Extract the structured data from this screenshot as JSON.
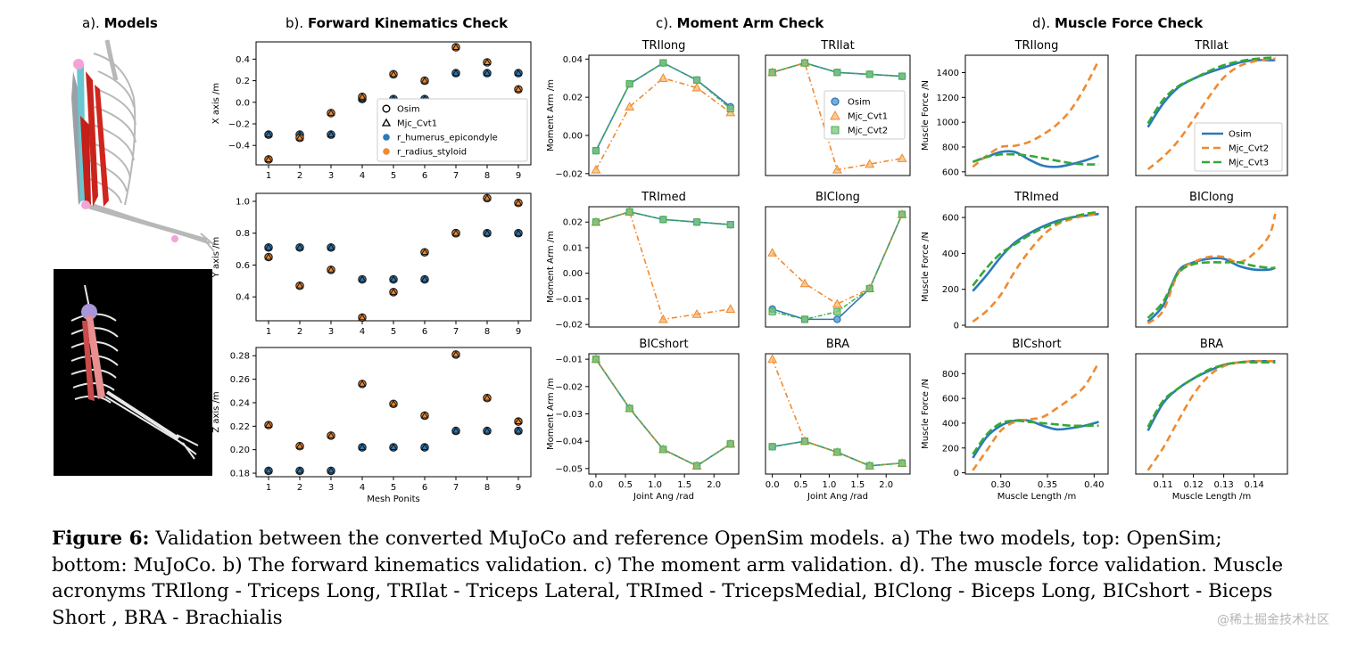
{
  "sections": {
    "a": {
      "label": "a).",
      "title": "Models"
    },
    "b": {
      "label": "b).",
      "title": "Forward Kinematics Check"
    },
    "c": {
      "label": "c).",
      "title": "Moment Arm Check"
    },
    "d": {
      "label": "d).",
      "title": "Muscle Force Check"
    }
  },
  "caption": {
    "label": "Figure 6:",
    "text": " Validation between the converted MuJoCo and reference OpenSim models. a) The two models, top: OpenSim; bottom: MuJoCo. b) The forward kinematics validation. c) The moment arm validation. d). The muscle force validation. Muscle acronyms TRIlong - Triceps Long, TRIlat - Triceps Lateral, TRImed - TricepsMedial, BIClong - Biceps Long, BICshort - Biceps Short , BRA - Brachialis"
  },
  "watermark": "@稀土掘金技术社区",
  "colors": {
    "osim": "#2a7ab8",
    "mjc": "#f08a30",
    "cvt2": "#4caf50",
    "cvt3": "#35a835"
  },
  "chart_data": [
    {
      "id": "fk_x",
      "type": "scatter",
      "ylabel": "X axis /m",
      "x": [
        1,
        2,
        3,
        4,
        5,
        6,
        7,
        8,
        9
      ],
      "xlim": [
        0.6,
        9.4
      ],
      "ylim": [
        -0.58,
        0.56
      ],
      "yticks": [
        -0.4,
        -0.2,
        0.0,
        0.2,
        0.4
      ],
      "ytick_labels": [
        "−0.4",
        "−0.2",
        "0.0",
        "0.2",
        "0.4"
      ],
      "xticks": [
        1,
        2,
        3,
        4,
        5,
        6,
        7,
        8,
        9
      ],
      "xtick_labels": [
        "1",
        "2",
        "3",
        "4",
        "5",
        "6",
        "7",
        "8",
        "9"
      ],
      "series": [
        {
          "name": "r_humerus_epicondyle",
          "values": [
            -0.3,
            -0.3,
            -0.3,
            0.03,
            0.03,
            0.03,
            0.27,
            0.27,
            0.27
          ]
        },
        {
          "name": "r_radius_styloid",
          "values": [
            -0.53,
            -0.33,
            -0.1,
            0.05,
            0.26,
            0.2,
            0.51,
            0.37,
            0.12
          ]
        }
      ],
      "legend": [
        "Osim",
        "Mjc_Cvt1",
        "r_humerus_epicondyle",
        "r_radius_styloid"
      ],
      "legend_loc": "center-right"
    },
    {
      "id": "fk_y",
      "type": "scatter",
      "ylabel": "Y axis /m",
      "x": [
        1,
        2,
        3,
        4,
        5,
        6,
        7,
        8,
        9
      ],
      "xlim": [
        0.6,
        9.4
      ],
      "ylim": [
        0.25,
        1.05
      ],
      "yticks": [
        0.4,
        0.6,
        0.8,
        1.0
      ],
      "ytick_labels": [
        "0.4",
        "0.6",
        "0.8",
        "1.0"
      ],
      "xticks": [
        1,
        2,
        3,
        4,
        5,
        6,
        7,
        8,
        9
      ],
      "xtick_labels": [
        "1",
        "2",
        "3",
        "4",
        "5",
        "6",
        "7",
        "8",
        "9"
      ],
      "series": [
        {
          "name": "r_humerus_epicondyle",
          "values": [
            0.71,
            0.71,
            0.71,
            0.51,
            0.51,
            0.51,
            0.8,
            0.8,
            0.8
          ]
        },
        {
          "name": "r_radius_styloid",
          "values": [
            0.65,
            0.47,
            0.57,
            0.27,
            0.43,
            0.68,
            0.8,
            1.02,
            0.99
          ]
        }
      ]
    },
    {
      "id": "fk_z",
      "type": "scatter",
      "ylabel": "Z axis /m",
      "xlabel": "Mesh Ponits",
      "x": [
        1,
        2,
        3,
        4,
        5,
        6,
        7,
        8,
        9
      ],
      "xlim": [
        0.6,
        9.4
      ],
      "ylim": [
        0.177,
        0.287
      ],
      "yticks": [
        0.18,
        0.2,
        0.22,
        0.24,
        0.26,
        0.28
      ],
      "ytick_labels": [
        "0.18",
        "0.20",
        "0.22",
        "0.24",
        "0.26",
        "0.28"
      ],
      "xticks": [
        1,
        2,
        3,
        4,
        5,
        6,
        7,
        8,
        9
      ],
      "xtick_labels": [
        "1",
        "2",
        "3",
        "4",
        "5",
        "6",
        "7",
        "8",
        "9"
      ],
      "series": [
        {
          "name": "r_humerus_epicondyle",
          "values": [
            0.182,
            0.182,
            0.182,
            0.202,
            0.202,
            0.202,
            0.216,
            0.216,
            0.216
          ]
        },
        {
          "name": "r_radius_styloid",
          "values": [
            0.221,
            0.203,
            0.212,
            0.256,
            0.239,
            0.229,
            0.281,
            0.244,
            0.224
          ]
        }
      ]
    },
    {
      "id": "ma_trilong",
      "type": "line",
      "title": "TRIlong",
      "ylabel": "Moment Arm /m",
      "x": [
        0.0,
        0.57,
        1.14,
        1.71,
        2.28
      ],
      "xlim": [
        -0.12,
        2.42
      ],
      "ylim": [
        -0.021,
        0.042
      ],
      "yticks": [
        -0.02,
        0.0,
        0.02,
        0.04
      ],
      "ytick_labels": [
        "−0.02",
        "0.00",
        "0.02",
        "0.04"
      ],
      "series": [
        {
          "name": "Osim",
          "values": [
            -0.008,
            0.027,
            0.038,
            0.029,
            0.015
          ]
        },
        {
          "name": "Mjc_Cvt1",
          "values": [
            -0.018,
            0.015,
            0.03,
            0.025,
            0.012
          ]
        },
        {
          "name": "Mjc_Cvt2",
          "values": [
            -0.008,
            0.027,
            0.038,
            0.029,
            0.014
          ]
        }
      ]
    },
    {
      "id": "ma_trilat",
      "type": "line",
      "title": "TRIlat",
      "x": [
        0.0,
        0.57,
        1.14,
        1.71,
        2.28
      ],
      "xlim": [
        -0.12,
        2.42
      ],
      "ylim": [
        -0.021,
        0.042
      ],
      "yticks": [],
      "ytick_labels": [],
      "series": [
        {
          "name": "Osim",
          "values": [
            0.033,
            0.038,
            0.033,
            0.032,
            0.031
          ]
        },
        {
          "name": "Mjc_Cvt1",
          "values": [
            0.033,
            0.038,
            -0.018,
            -0.015,
            -0.012
          ]
        },
        {
          "name": "Mjc_Cvt2",
          "values": [
            0.033,
            0.038,
            0.033,
            0.032,
            0.031
          ]
        }
      ],
      "legend": [
        "Osim",
        "Mjc_Cvt1",
        "Mjc_Cvt2"
      ],
      "legend_loc": "center-right"
    },
    {
      "id": "ma_trimed",
      "type": "line",
      "title": "TRImed",
      "ylabel": "Moment Arm /m",
      "x": [
        0.0,
        0.57,
        1.14,
        1.71,
        2.28
      ],
      "xlim": [
        -0.12,
        2.42
      ],
      "ylim": [
        -0.021,
        0.026
      ],
      "yticks": [
        -0.02,
        -0.01,
        0.0,
        0.01,
        0.02
      ],
      "ytick_labels": [
        "−0.02",
        "−0.01",
        "0.00",
        "0.01",
        "0.02"
      ],
      "series": [
        {
          "name": "Osim",
          "values": [
            0.02,
            0.024,
            0.021,
            0.02,
            0.019
          ]
        },
        {
          "name": "Mjc_Cvt1",
          "values": [
            0.02,
            0.024,
            -0.018,
            -0.016,
            -0.014
          ]
        },
        {
          "name": "Mjc_Cvt2",
          "values": [
            0.02,
            0.024,
            0.021,
            0.02,
            0.019
          ]
        }
      ]
    },
    {
      "id": "ma_biclong",
      "type": "line",
      "title": "BIClong",
      "x": [
        0.0,
        0.57,
        1.14,
        1.71,
        2.28
      ],
      "xlim": [
        -0.12,
        2.42
      ],
      "ylim": [
        -0.021,
        0.026
      ],
      "yticks": [],
      "ytick_labels": [],
      "series": [
        {
          "name": "Osim",
          "values": [
            -0.014,
            -0.018,
            -0.018,
            -0.006,
            0.023
          ]
        },
        {
          "name": "Mjc_Cvt1",
          "values": [
            0.008,
            -0.004,
            -0.012,
            -0.006,
            0.023
          ]
        },
        {
          "name": "Mjc_Cvt2",
          "values": [
            -0.015,
            -0.018,
            -0.015,
            -0.006,
            0.023
          ]
        }
      ]
    },
    {
      "id": "ma_bicshort",
      "type": "line",
      "title": "BICshort",
      "ylabel": "Moment Arm /m",
      "xlabel": "Joint Ang /rad",
      "x": [
        0.0,
        0.57,
        1.14,
        1.71,
        2.28
      ],
      "xlim": [
        -0.12,
        2.42
      ],
      "ylim": [
        -0.052,
        -0.008
      ],
      "yticks": [
        -0.05,
        -0.04,
        -0.03,
        -0.02,
        -0.01
      ],
      "ytick_labels": [
        "−0.05",
        "−0.04",
        "−0.03",
        "−0.02",
        "−0.01"
      ],
      "xticks": [
        0.0,
        0.5,
        1.0,
        1.5,
        2.0
      ],
      "xtick_labels": [
        "0.0",
        "0.5",
        "1.0",
        "1.5",
        "2.0"
      ],
      "series": [
        {
          "name": "Osim",
          "values": [
            -0.01,
            -0.028,
            -0.043,
            -0.049,
            -0.041
          ]
        },
        {
          "name": "Mjc_Cvt1",
          "values": [
            -0.01,
            -0.028,
            -0.043,
            -0.049,
            -0.041
          ]
        },
        {
          "name": "Mjc_Cvt2",
          "values": [
            -0.01,
            -0.028,
            -0.043,
            -0.049,
            -0.041
          ]
        }
      ]
    },
    {
      "id": "ma_bra",
      "type": "line",
      "title": "BRA",
      "xlabel": "Joint Ang /rad",
      "x": [
        0.0,
        0.57,
        1.14,
        1.71,
        2.28
      ],
      "xlim": [
        -0.12,
        2.42
      ],
      "ylim": [
        -0.052,
        -0.008
      ],
      "yticks": [],
      "ytick_labels": [],
      "xticks": [
        0.0,
        0.5,
        1.0,
        1.5,
        2.0
      ],
      "xtick_labels": [
        "0.0",
        "0.5",
        "1.0",
        "1.5",
        "2.0"
      ],
      "series": [
        {
          "name": "Osim",
          "values": [
            -0.042,
            -0.04,
            -0.044,
            -0.049,
            -0.048
          ]
        },
        {
          "name": "Mjc_Cvt1",
          "values": [
            -0.01,
            -0.04,
            -0.044,
            -0.049,
            -0.048
          ]
        },
        {
          "name": "Mjc_Cvt2",
          "values": [
            -0.042,
            -0.04,
            -0.044,
            -0.049,
            -0.048
          ]
        }
      ]
    },
    {
      "id": "mf_trilong",
      "type": "line",
      "title": "TRIlong",
      "ylabel": "Muscle Force /N",
      "x": [
        0.27,
        0.285,
        0.3,
        0.315,
        0.33,
        0.345,
        0.36,
        0.375,
        0.39,
        0.405
      ],
      "xlim": [
        0.262,
        0.415
      ],
      "ylim": [
        570,
        1540
      ],
      "yticks": [
        600,
        800,
        1000,
        1200,
        1400
      ],
      "ytick_labels": [
        "600",
        "800",
        "1000",
        "1200",
        "1400"
      ],
      "series": [
        {
          "name": "Osim",
          "values": [
            680,
            720,
            760,
            760,
            700,
            650,
            640,
            660,
            690,
            730
          ]
        },
        {
          "name": "Mjc_Cvt2",
          "values": [
            640,
            730,
            800,
            810,
            840,
            900,
            980,
            1100,
            1280,
            1500
          ]
        },
        {
          "name": "Mjc_Cvt3",
          "values": [
            680,
            720,
            740,
            740,
            730,
            710,
            690,
            670,
            660,
            660
          ]
        }
      ]
    },
    {
      "id": "mf_trilat",
      "type": "line",
      "title": "TRIlat",
      "x": [
        0.105,
        0.11,
        0.115,
        0.12,
        0.125,
        0.13,
        0.135,
        0.14,
        0.145,
        0.147
      ],
      "xlim": [
        0.101,
        0.151
      ],
      "ylim": [
        570,
        1540
      ],
      "yticks": [],
      "ytick_labels": [],
      "series": [
        {
          "name": "Osim",
          "values": [
            960,
            1150,
            1280,
            1350,
            1400,
            1440,
            1480,
            1500,
            1500,
            1500
          ]
        },
        {
          "name": "Mjc_Cvt2",
          "values": [
            620,
            720,
            850,
            1020,
            1200,
            1360,
            1450,
            1490,
            1510,
            1510
          ]
        },
        {
          "name": "Mjc_Cvt3",
          "values": [
            990,
            1180,
            1290,
            1350,
            1410,
            1460,
            1490,
            1510,
            1520,
            1520
          ]
        }
      ],
      "legend": [
        "Osim",
        "Mjc_Cvt2",
        "Mjc_Cvt3"
      ],
      "legend_loc": "center-right"
    },
    {
      "id": "mf_trimed",
      "type": "line",
      "title": "TRImed",
      "ylabel": "Muscle Force /N",
      "x": [
        0.27,
        0.285,
        0.3,
        0.315,
        0.33,
        0.345,
        0.36,
        0.375,
        0.39,
        0.405
      ],
      "xlim": [
        0.262,
        0.415
      ],
      "ylim": [
        -10,
        660
      ],
      "yticks": [
        0,
        200,
        400,
        600
      ],
      "ytick_labels": [
        "0",
        "200",
        "400",
        "600"
      ],
      "series": [
        {
          "name": "Osim",
          "values": [
            190,
            280,
            380,
            460,
            510,
            550,
            580,
            600,
            610,
            620
          ]
        },
        {
          "name": "Mjc_Cvt2",
          "values": [
            20,
            80,
            170,
            300,
            410,
            500,
            560,
            590,
            610,
            620
          ]
        },
        {
          "name": "Mjc_Cvt3",
          "values": [
            220,
            320,
            400,
            450,
            500,
            540,
            570,
            600,
            620,
            630
          ]
        }
      ]
    },
    {
      "id": "mf_biclong",
      "type": "line",
      "title": "BIClong",
      "x": [
        0.105,
        0.11,
        0.115,
        0.12,
        0.125,
        0.13,
        0.135,
        0.14,
        0.145,
        0.147
      ],
      "xlim": [
        0.101,
        0.151
      ],
      "ylim": [
        -10,
        660
      ],
      "yticks": [],
      "ytick_labels": [],
      "series": [
        {
          "name": "Osim",
          "values": [
            20,
            110,
            300,
            350,
            370,
            370,
            330,
            310,
            310,
            320
          ]
        },
        {
          "name": "Mjc_Cvt2",
          "values": [
            10,
            80,
            290,
            350,
            380,
            380,
            350,
            400,
            500,
            620
          ]
        },
        {
          "name": "Mjc_Cvt3",
          "values": [
            40,
            130,
            290,
            340,
            350,
            350,
            350,
            330,
            320,
            320
          ]
        }
      ]
    },
    {
      "id": "mf_bicshort",
      "type": "line",
      "title": "BICshort",
      "ylabel": "Muscle Force /N",
      "xlabel": "Muscle Length /m",
      "x": [
        0.27,
        0.285,
        0.3,
        0.315,
        0.33,
        0.345,
        0.36,
        0.375,
        0.39,
        0.405
      ],
      "xlim": [
        0.262,
        0.415
      ],
      "ylim": [
        -10,
        960
      ],
      "yticks": [
        0,
        200,
        400,
        600,
        800
      ],
      "ytick_labels": [
        "0",
        "200",
        "400",
        "600",
        "800"
      ],
      "xticks": [
        0.3,
        0.35,
        0.4
      ],
      "xtick_labels": [
        "0.30",
        "0.35",
        "0.40"
      ],
      "series": [
        {
          "name": "Osim",
          "values": [
            120,
            290,
            380,
            420,
            420,
            380,
            350,
            360,
            380,
            410
          ]
        },
        {
          "name": "Mjc_Cvt2",
          "values": [
            20,
            180,
            340,
            410,
            430,
            450,
            520,
            600,
            700,
            890
          ]
        },
        {
          "name": "Mjc_Cvt3",
          "values": [
            150,
            310,
            400,
            420,
            410,
            400,
            390,
            380,
            380,
            380
          ]
        }
      ]
    },
    {
      "id": "mf_bra",
      "type": "line",
      "title": "BRA",
      "xlabel": "Muscle Length /m",
      "x": [
        0.105,
        0.11,
        0.115,
        0.12,
        0.125,
        0.13,
        0.135,
        0.14,
        0.145,
        0.147
      ],
      "xlim": [
        0.101,
        0.151
      ],
      "ylim": [
        -10,
        960
      ],
      "yticks": [],
      "ytick_labels": [],
      "xticks": [
        0.11,
        0.12,
        0.13,
        0.14
      ],
      "xtick_labels": [
        "0.11",
        "0.12",
        "0.13",
        "0.14"
      ],
      "series": [
        {
          "name": "Osim",
          "values": [
            340,
            560,
            680,
            760,
            820,
            870,
            890,
            900,
            900,
            900
          ]
        },
        {
          "name": "Mjc_Cvt2",
          "values": [
            20,
            200,
            420,
            630,
            780,
            860,
            890,
            900,
            900,
            900
          ]
        },
        {
          "name": "Mjc_Cvt3",
          "values": [
            370,
            580,
            680,
            760,
            830,
            870,
            890,
            890,
            890,
            890
          ]
        }
      ]
    }
  ]
}
